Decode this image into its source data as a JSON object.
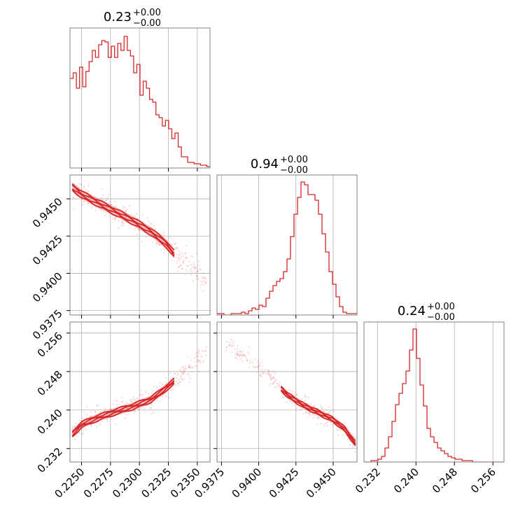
{
  "chart_data": {
    "type": "corner",
    "color": "#d62728",
    "panels": [
      {
        "id": "hist-p1",
        "type": "histogram",
        "title_main": "0.23",
        "title_plus": "+0.00",
        "title_minus": "−0.00",
        "xlim": [
          0.224,
          0.2361
        ],
        "x_ticks": [
          0.225,
          0.2275,
          0.23,
          0.2325,
          0.235
        ],
        "heights": [
          0.64,
          0.68,
          0.57,
          0.72,
          0.58,
          0.69,
          0.76,
          0.84,
          0.79,
          0.88,
          0.91,
          0.9,
          0.79,
          0.87,
          0.79,
          0.89,
          0.84,
          0.94,
          0.84,
          0.8,
          0.68,
          0.74,
          0.52,
          0.62,
          0.57,
          0.49,
          0.47,
          0.38,
          0.36,
          0.3,
          0.34,
          0.28,
          0.21,
          0.25,
          0.15,
          0.08,
          0.08,
          0.04,
          0.04,
          0.03,
          0.03,
          0.02,
          0.02,
          0.01
        ]
      },
      {
        "id": "hist-p2",
        "type": "histogram",
        "title_main": "0.94",
        "title_plus": "+0.00",
        "title_minus": "−0.00",
        "xlim": [
          0.9372,
          0.9466
        ],
        "x_ticks": [
          0.9375,
          0.94,
          0.9425,
          0.945
        ],
        "heights": [
          0.01,
          0.01,
          0.0,
          0.0,
          0.01,
          0.01,
          0.01,
          0.02,
          0.01,
          0.03,
          0.05,
          0.04,
          0.07,
          0.06,
          0.12,
          0.17,
          0.21,
          0.24,
          0.26,
          0.31,
          0.4,
          0.56,
          0.72,
          0.84,
          0.95,
          0.93,
          0.86,
          0.86,
          0.82,
          0.72,
          0.58,
          0.45,
          0.31,
          0.22,
          0.13,
          0.06,
          0.02,
          0.01,
          0.01,
          0.01
        ]
      },
      {
        "id": "hist-p3",
        "type": "histogram",
        "title_main": "0.24",
        "title_plus": "+0.00",
        "title_minus": "−0.00",
        "xlim": [
          0.2292,
          0.2583
        ],
        "x_ticks": [
          0.232,
          0.24,
          0.248,
          0.256
        ],
        "heights": [
          0.0,
          0.0,
          0.01,
          0.01,
          0.02,
          0.04,
          0.1,
          0.18,
          0.29,
          0.41,
          0.49,
          0.56,
          0.65,
          0.8,
          0.95,
          0.74,
          0.55,
          0.4,
          0.24,
          0.18,
          0.14,
          0.1,
          0.08,
          0.06,
          0.04,
          0.03,
          0.02,
          0.02,
          0.01,
          0.01,
          0.01,
          0.0,
          0.0,
          0.0,
          0.0,
          0.0,
          0.0,
          0.0,
          0.0,
          0.0
        ]
      },
      {
        "id": "scatter-p1-p2",
        "type": "scatter-density",
        "xlim": [
          0.224,
          0.2361
        ],
        "ylim": [
          0.9372,
          0.9466
        ],
        "x_ticks": [
          0.225,
          0.2275,
          0.23,
          0.2325,
          0.235
        ],
        "y_ticks": [
          0.9375,
          0.94,
          0.9425,
          0.945
        ],
        "ridge": [
          [
            0.2242,
            0.9458
          ],
          [
            0.225,
            0.9453
          ],
          [
            0.2265,
            0.9447
          ],
          [
            0.228,
            0.9441
          ],
          [
            0.2295,
            0.9435
          ],
          [
            0.231,
            0.9428
          ],
          [
            0.2323,
            0.942
          ],
          [
            0.233,
            0.9413
          ],
          [
            0.2345,
            0.9405
          ],
          [
            0.2358,
            0.9395
          ]
        ],
        "core_end": 0.233,
        "spread": 0.00045
      },
      {
        "id": "scatter-p1-p3",
        "type": "scatter-density",
        "xlim": [
          0.224,
          0.2361
        ],
        "ylim": [
          0.2292,
          0.2583
        ],
        "x_ticks": [
          0.225,
          0.2275,
          0.23,
          0.2325,
          0.235
        ],
        "y_ticks": [
          0.232,
          0.24,
          0.248,
          0.256
        ],
        "ridge": [
          [
            0.2242,
            0.235
          ],
          [
            0.225,
            0.237
          ],
          [
            0.2265,
            0.2385
          ],
          [
            0.228,
            0.2397
          ],
          [
            0.2295,
            0.2408
          ],
          [
            0.231,
            0.2422
          ],
          [
            0.232,
            0.244
          ],
          [
            0.233,
            0.246
          ],
          [
            0.2345,
            0.249
          ],
          [
            0.2358,
            0.2525
          ]
        ],
        "core_end": 0.233,
        "spread": 0.0012
      },
      {
        "id": "scatter-p2-p3",
        "type": "scatter-density",
        "xlim": [
          0.9372,
          0.9466
        ],
        "ylim": [
          0.2292,
          0.2583
        ],
        "x_ticks": [
          0.9375,
          0.94,
          0.9425,
          0.945
        ],
        "y_ticks": [
          0.232,
          0.24,
          0.248,
          0.256
        ],
        "ridge": [
          [
            0.9378,
            0.254
          ],
          [
            0.9395,
            0.25
          ],
          [
            0.941,
            0.246
          ],
          [
            0.942,
            0.243
          ],
          [
            0.943,
            0.241
          ],
          [
            0.944,
            0.2395
          ],
          [
            0.945,
            0.238
          ],
          [
            0.9458,
            0.236
          ],
          [
            0.9465,
            0.233
          ]
        ],
        "core_start": 0.9415,
        "spread": 0.001
      }
    ],
    "tick_labels": {
      "p1": [
        "0.2250",
        "0.2275",
        "0.2300",
        "0.2325",
        "0.2350"
      ],
      "p2": [
        "0.9375",
        "0.9400",
        "0.9425",
        "0.9450"
      ],
      "p3": [
        "0.232",
        "0.240",
        "0.248",
        "0.256"
      ]
    }
  }
}
